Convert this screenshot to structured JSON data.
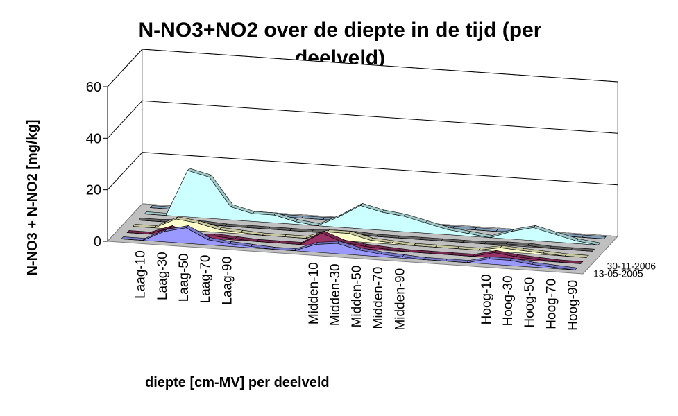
{
  "chart_data": {
    "type": "area",
    "title": "N-NO3+NO2 over de diepte in de tijd (per deelveld)",
    "ylabel": "N-NO3 + N-NO2 [mg/kg]",
    "xlabel": "diepte [cm-MV] per deelveld",
    "ylim": [
      0,
      60
    ],
    "yticks": [
      0,
      20,
      40,
      60
    ],
    "grid": true,
    "x": [
      "",
      "Laag-10",
      "Laag-30",
      "Laag-50",
      "Laag-70",
      "Laag-90",
      "",
      "",
      "",
      "Midden-10",
      "Midden-30",
      "Midden-50",
      "Midden-70",
      "Midden-90",
      "",
      "",
      "",
      "Hoog-10",
      "Hoog-30",
      "Hoog-50",
      "Hoog-70",
      "Hoog-90"
    ],
    "depth_labels": [
      "13-05-2005",
      "30-11-2006"
    ],
    "series": [
      {
        "color": "#9999ff",
        "values": [
          0,
          0,
          4,
          6,
          2,
          1,
          0.5,
          0,
          0,
          3,
          4,
          2,
          1,
          0.5,
          0,
          0,
          0,
          2,
          2,
          1,
          0.5,
          0
        ]
      },
      {
        "color": "#993366",
        "values": [
          0,
          0,
          3,
          0,
          1,
          0.5,
          0,
          0,
          0,
          5,
          2,
          1,
          0.5,
          0,
          0,
          0,
          0,
          2,
          1,
          0.5,
          0,
          0
        ]
      },
      {
        "color": "#ffffcc",
        "values": [
          0,
          0,
          4,
          3,
          1,
          0.5,
          0,
          0,
          0,
          3,
          3,
          1,
          0.5,
          0,
          0,
          0,
          0,
          1.5,
          1,
          0.5,
          0,
          0
        ]
      },
      {
        "color": "#808080",
        "values": [
          0,
          0,
          0.5,
          0.5,
          0,
          0,
          0,
          0,
          0,
          0.5,
          0.5,
          0,
          0,
          0,
          0,
          0,
          0,
          0.5,
          0.5,
          0,
          0,
          0
        ]
      },
      {
        "color": "#ccffff",
        "values": [
          0,
          0,
          18,
          16,
          5,
          3,
          3,
          1,
          0,
          4,
          9,
          7,
          6,
          4,
          2,
          1,
          0,
          3,
          5,
          3,
          1,
          0
        ]
      },
      {
        "color": "#a6caf0",
        "values": [
          0,
          0,
          0.5,
          0.5,
          0,
          0,
          0,
          0,
          0,
          0.5,
          0.5,
          0,
          0,
          0,
          0,
          0,
          0,
          0.5,
          0.5,
          0,
          0,
          0
        ]
      }
    ]
  }
}
